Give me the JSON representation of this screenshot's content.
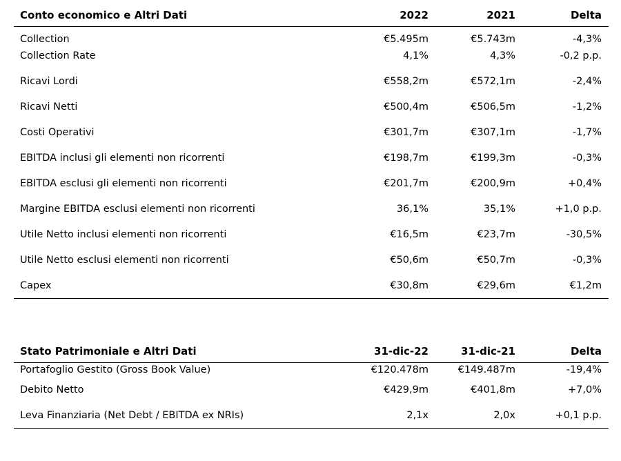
{
  "income": {
    "header": {
      "title": "Conto economico e Altri Dati",
      "col1": "2022",
      "col2": "2021",
      "col3": "Delta"
    },
    "rows": [
      {
        "label": "Collection",
        "v2022": "€5.495m",
        "v2021": "€5.743m",
        "delta": "-4,3%"
      },
      {
        "label": "Collection Rate",
        "v2022": "4,1%",
        "v2021": "4,3%",
        "delta": "-0,2 p.p."
      },
      {
        "label": "Ricavi Lordi",
        "v2022": "€558,2m",
        "v2021": "€572,1m",
        "delta": "-2,4%"
      },
      {
        "label": "Ricavi Netti",
        "v2022": "€500,4m",
        "v2021": "€506,5m",
        "delta": "-1,2%"
      },
      {
        "label": "Costi Operativi",
        "v2022": "€301,7m",
        "v2021": "€307,1m",
        "delta": "-1,7%"
      },
      {
        "label": "EBITDA inclusi gli elementi non ricorrenti",
        "v2022": "€198,7m",
        "v2021": "€199,3m",
        "delta": "-0,3%"
      },
      {
        "label": "EBITDA esclusi gli elementi non ricorrenti",
        "v2022": "€201,7m",
        "v2021": "€200,9m",
        "delta": "+0,4%"
      },
      {
        "label": "Margine EBITDA esclusi elementi non ricorrenti",
        "v2022": "36,1%",
        "v2021": "35,1%",
        "delta": "+1,0 p.p."
      },
      {
        "label": "Utile Netto inclusi elementi non ricorrenti",
        "v2022": "€16,5m",
        "v2021": "€23,7m",
        "delta": "-30,5%"
      },
      {
        "label": "Utile Netto esclusi elementi non ricorrenti",
        "v2022": "€50,6m",
        "v2021": "€50,7m",
        "delta": "-0,3%"
      },
      {
        "label": "Capex",
        "v2022": "€30,8m",
        "v2021": "€29,6m",
        "delta": "€1,2m"
      }
    ]
  },
  "balance": {
    "header": {
      "title": "Stato Patrimoniale e Altri Dati",
      "col1": "31-dic-22",
      "col2": "31-dic-21",
      "col3": "Delta"
    },
    "rows": [
      {
        "label": "Portafoglio Gestito (Gross Book Value)",
        "v2022": "€120.478m",
        "v2021": "€149.487m",
        "delta": "-19,4%"
      },
      {
        "label": "Debito Netto",
        "v2022": "€429,9m",
        "v2021": "€401,8m",
        "delta": "+7,0%"
      },
      {
        "label": "Leva Finanziaria (Net Debt / EBITDA ex NRIs)",
        "v2022": "2,1x",
        "v2021": "2,0x",
        "delta": "+0,1 p.p."
      }
    ]
  }
}
